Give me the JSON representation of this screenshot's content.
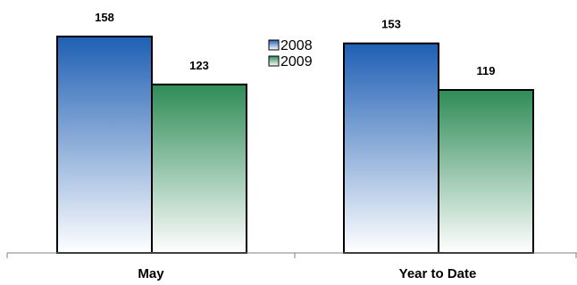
{
  "chart_data": {
    "type": "bar",
    "categories": [
      "May",
      "Year to Date"
    ],
    "series": [
      {
        "name": "2008",
        "values": [
          158,
          153
        ],
        "color": "#1f5fb4"
      },
      {
        "name": "2009",
        "values": [
          123,
          119
        ],
        "color": "#2e8b57"
      }
    ],
    "title": "",
    "xlabel": "",
    "ylabel": "",
    "ylim": [
      0,
      170
    ],
    "grid": false,
    "legend": "top-center",
    "data_labels": true
  }
}
